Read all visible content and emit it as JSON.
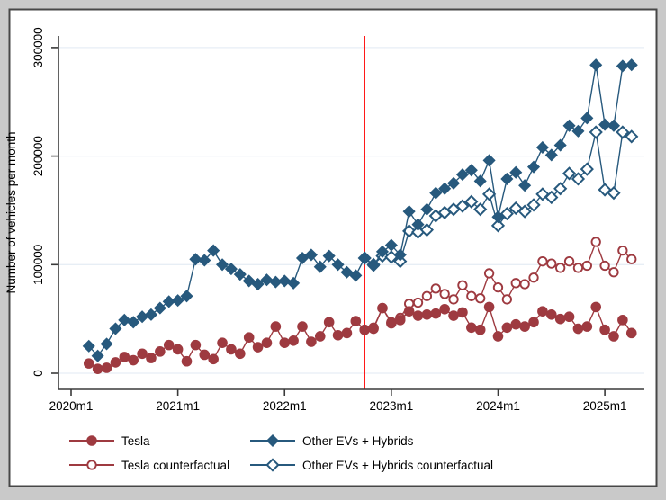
{
  "frame": {
    "outer_bg": "#c9c9c9",
    "border_color": "#474747",
    "inner_bg": "#ffffff"
  },
  "axes": {
    "axis_color": "#3a3a3a",
    "grid_color": "#e7eef5",
    "tick_label_color": "#000000"
  },
  "chart_data": {
    "type": "line",
    "title": "",
    "xlabel": "",
    "ylabel": "Number of vehicles per month",
    "grid": "horizontal",
    "legend_position": "bottom",
    "x_unit": "month",
    "x_start_label": "2020m1",
    "x_tick_labels": [
      "2020m1",
      "2021m1",
      "2022m1",
      "2023m1",
      "2024m1",
      "2025m1"
    ],
    "x_tick_month_indices": [
      0,
      12,
      24,
      36,
      48,
      60
    ],
    "y_ticks": [
      0,
      100000,
      200000,
      300000
    ],
    "y_tick_labels": [
      "0",
      "100000",
      "200000",
      "300000"
    ],
    "ylim": [
      0,
      310000
    ],
    "event_line": {
      "month_index": 33,
      "month_label": "2022m10",
      "color": "#ff0000"
    },
    "series": [
      {
        "name": "Tesla",
        "marker": "circle",
        "fill": "solid",
        "color": "#9e3a40",
        "start_month_index": 2,
        "values": [
          9000,
          4000,
          5000,
          10000,
          15000,
          12000,
          18000,
          14000,
          20000,
          26000,
          22000,
          11000,
          26000,
          17000,
          13000,
          28000,
          22000,
          18000,
          33000,
          24000,
          28000,
          43000,
          28000,
          30000,
          43000,
          29000,
          34000,
          47000,
          35000,
          37000,
          48000,
          40000,
          41000,
          60000,
          46000,
          49000,
          57000,
          53000,
          54000,
          55000,
          59000,
          53000,
          56000,
          42000,
          40000,
          61000,
          34000,
          42000,
          45000,
          43000,
          47000,
          57000,
          54000,
          50000,
          52000,
          41000,
          43000,
          61000,
          40000,
          34000,
          49000,
          37000
        ]
      },
      {
        "name": "Tesla counterfactual",
        "marker": "circle",
        "fill": "open",
        "color": "#9e3a40",
        "start_month_index": 33,
        "values": [
          40000,
          42000,
          60000,
          47000,
          51000,
          64000,
          65000,
          71000,
          78000,
          73000,
          68000,
          81000,
          71000,
          69000,
          92000,
          79000,
          68000,
          83000,
          82000,
          88000,
          103000,
          101000,
          97000,
          103000,
          97000,
          99000,
          121000,
          99000,
          93000,
          113000,
          105000
        ]
      },
      {
        "name": "Other EVs + Hybrids",
        "marker": "diamond",
        "fill": "solid",
        "color": "#27597d",
        "start_month_index": 2,
        "values": [
          25000,
          16000,
          27000,
          41000,
          49000,
          47000,
          52000,
          54000,
          60000,
          66000,
          67000,
          71000,
          105000,
          104000,
          113000,
          100000,
          96000,
          91000,
          85000,
          82000,
          86000,
          84000,
          85000,
          83000,
          106000,
          109000,
          98000,
          108000,
          100000,
          93000,
          90000,
          106000,
          99000,
          112000,
          118000,
          109000,
          149000,
          137000,
          151000,
          166000,
          170000,
          175000,
          183000,
          187000,
          177000,
          196000,
          144000,
          179000,
          185000,
          173000,
          190000,
          208000,
          201000,
          210000,
          228000,
          223000,
          235000,
          284000,
          229000,
          228000,
          283000,
          284000
        ]
      },
      {
        "name": "Other EVs + Hybrids counterfactual",
        "marker": "diamond",
        "fill": "open",
        "color": "#27597d",
        "start_month_index": 33,
        "values": [
          106000,
          100000,
          108000,
          107000,
          103000,
          131000,
          130000,
          132000,
          145000,
          148000,
          151000,
          154000,
          158000,
          151000,
          165000,
          136000,
          147000,
          152000,
          149000,
          155000,
          165000,
          162000,
          170000,
          184000,
          179000,
          188000,
          222000,
          169000,
          166000,
          222000,
          218000
        ]
      }
    ],
    "legend": {
      "columns": [
        {
          "series_indices": [
            0,
            1
          ]
        },
        {
          "series_indices": [
            2,
            3
          ]
        }
      ]
    }
  }
}
